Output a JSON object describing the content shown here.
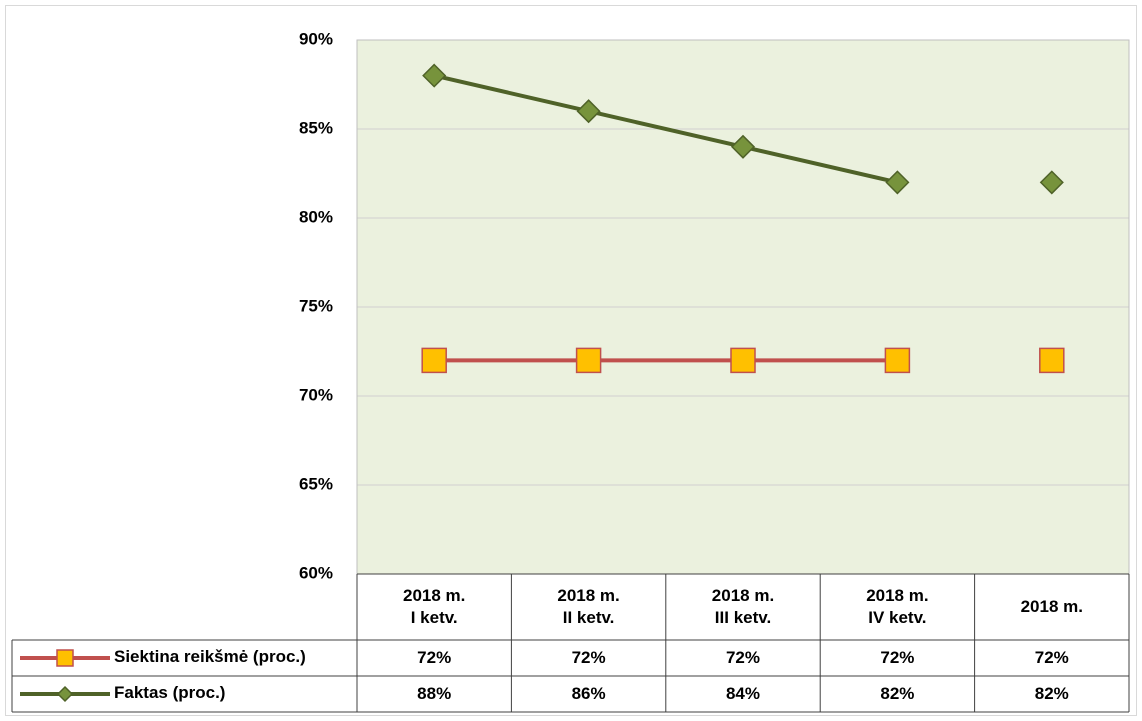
{
  "chart_data": {
    "type": "line",
    "categories": [
      "2018 m.\nI ketv.",
      "2018 m.\nII ketv.",
      "2018 m.\nIII ketv.",
      "2018 m.\nIV ketv.",
      "2018 m."
    ],
    "series": [
      {
        "name": "Siektina reikšmė (proc.)",
        "color": "#c0504d",
        "marker": "square",
        "marker_color": "#ffc000",
        "values": [
          72,
          72,
          72,
          72,
          72
        ],
        "value_labels": [
          "72%",
          "72%",
          "72%",
          "72%",
          "72%"
        ]
      },
      {
        "name": "Faktas (proc.)",
        "color": "#4f6228",
        "marker": "diamond",
        "marker_color": "#77933c",
        "values": [
          88,
          86,
          84,
          82,
          82
        ],
        "value_labels": [
          "88%",
          "86%",
          "84%",
          "82%",
          "82%"
        ]
      }
    ],
    "line_pieces": [
      [
        0,
        3
      ],
      [
        4,
        4
      ]
    ],
    "ylim": [
      60,
      90
    ],
    "yticks": [
      {
        "value": 60,
        "label": "60%"
      },
      {
        "value": 65,
        "label": "65%"
      },
      {
        "value": 70,
        "label": "70%"
      },
      {
        "value": 75,
        "label": "75%"
      },
      {
        "value": 80,
        "label": "80%"
      },
      {
        "value": 85,
        "label": "85%"
      },
      {
        "value": 90,
        "label": "90%"
      }
    ],
    "grid": true,
    "plot_background": "#ebf1de",
    "data_table": true
  }
}
